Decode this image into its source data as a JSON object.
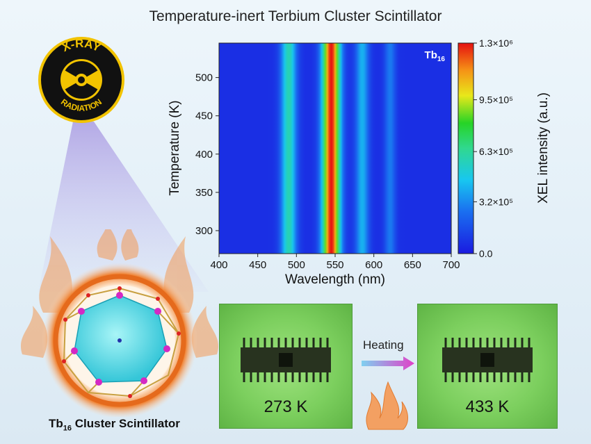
{
  "title": "Temperature-inert Terbium Cluster Scintillator",
  "badge": {
    "top_text": "X-RAY",
    "bottom_text": "RADIATION"
  },
  "cluster_caption": {
    "base": "Tb",
    "sub": "16",
    "rest": " Cluster Scintillator"
  },
  "photos": {
    "left_label": "273 K",
    "right_label": "433 K"
  },
  "heating_label": "Heating",
  "colors": {
    "accent": "#f07d2a",
    "photo_green": "#7ccf5e",
    "arrow_start": "#7fd0f0",
    "arrow_end": "#e040c8"
  },
  "chart_data": {
    "type": "heatmap",
    "xlabel": "Wavelength (nm)",
    "ylabel": "Temperature (K)",
    "colorbar_label": "XEL intensity (a.u.)",
    "inset_label": {
      "base": "Tb",
      "sub": "16"
    },
    "xlim": [
      400,
      700
    ],
    "ylim": [
      270,
      545
    ],
    "x_ticks": [
      400,
      450,
      500,
      550,
      600,
      650,
      700
    ],
    "y_ticks": [
      300,
      350,
      400,
      450,
      500
    ],
    "colorbar_ticks": [
      "0.0",
      "3.2×10⁵",
      "6.3×10⁵",
      "9.5×10⁵",
      "1.3×10⁶"
    ],
    "colorbar_values": [
      0,
      320000,
      630000,
      950000,
      1300000
    ],
    "emission_peaks": [
      {
        "center_nm": 490,
        "width_nm": 7,
        "relative_intensity": 0.42
      },
      {
        "center_nm": 545,
        "width_nm": 8,
        "relative_intensity": 1.0
      },
      {
        "center_nm": 585,
        "width_nm": 6,
        "relative_intensity": 0.28
      },
      {
        "center_nm": 621,
        "width_nm": 5,
        "relative_intensity": 0.18
      }
    ],
    "grid": false
  }
}
